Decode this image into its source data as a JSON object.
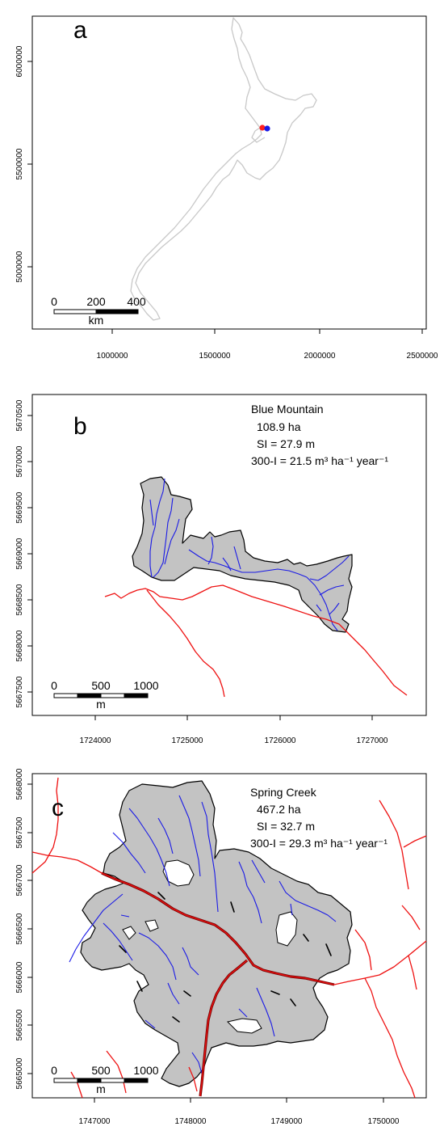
{
  "panels": {
    "a": {
      "letter": "a",
      "x_ticks": [
        "1000000",
        "1500000",
        "2000000",
        "2500000"
      ],
      "y_ticks": [
        "6000000",
        "5500000",
        "5000000"
      ],
      "scalebar": {
        "labels": [
          "0",
          "200",
          "400"
        ],
        "unit": "km"
      },
      "sites": [
        {
          "colour": "#ff2020"
        },
        {
          "colour": "#1a1ae6"
        }
      ]
    },
    "b": {
      "letter": "b",
      "site_name": "Blue Mountain",
      "area": "108.9 ha",
      "si": "SI = 27.9 m",
      "production": "300-I = 21.5 m³  ha⁻¹ year⁻¹",
      "x_ticks": [
        "1724000",
        "1725000",
        "1726000",
        "1727000"
      ],
      "y_ticks": [
        "5670500",
        "5670000",
        "5669500",
        "5669000",
        "5668500",
        "5668000",
        "5667500"
      ],
      "scalebar": {
        "labels": [
          "0",
          "500",
          "1000"
        ],
        "unit": "m"
      }
    },
    "c": {
      "letter": "c",
      "site_name": "Spring Creek",
      "area": "467.2 ha",
      "si": "SI = 32.7 m",
      "production": "300-I = 29.3 m³  ha⁻¹ year⁻¹",
      "x_ticks": [
        "1747000",
        "1748000",
        "1749000",
        "1750000"
      ],
      "y_ticks": [
        "5668000",
        "5667500",
        "5667000",
        "5666500",
        "5666000",
        "5665500",
        "5665000"
      ],
      "scalebar": {
        "labels": [
          "0",
          "500",
          "1000"
        ],
        "unit": "m"
      }
    }
  },
  "colors": {
    "coastline": "#c8c8c8",
    "catchment_fill": "#c3c3c3",
    "stream": "#1a1ae6",
    "road": "#ee1111"
  }
}
